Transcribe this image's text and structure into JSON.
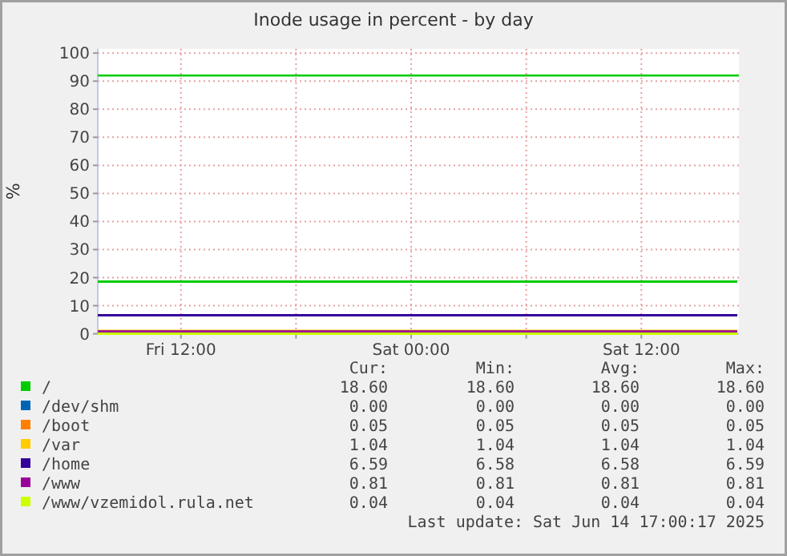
{
  "chart_data": {
    "type": "line",
    "title": "Inode usage in percent - by day",
    "ylabel": "%",
    "xlim": [
      "2025-06-13T07:40",
      "2025-06-14T17:05"
    ],
    "xticks": [
      {
        "value": "2025-06-13T12:00",
        "label": "Fri 12:00"
      },
      {
        "value": "2025-06-13T18:00",
        "label": null
      },
      {
        "value": "2025-06-14T00:00",
        "label": "Sat 00:00"
      },
      {
        "value": "2025-06-14T06:00",
        "label": null
      },
      {
        "value": "2025-06-14T12:00",
        "label": "Sat 12:00"
      }
    ],
    "ylim": [
      0,
      101.5
    ],
    "yticks": [
      0,
      10,
      20,
      30,
      40,
      50,
      60,
      70,
      80,
      90,
      100
    ],
    "grid": true,
    "legend": "bottom",
    "x": [
      "2025-06-13T07:40",
      "2025-06-14T17:00"
    ],
    "series": [
      {
        "name": "/",
        "color": "#00cc00",
        "values": [
          18.6,
          18.6
        ]
      },
      {
        "name": "/dev/shm",
        "color": "#0066b3",
        "values": [
          null,
          null
        ]
      },
      {
        "name": "/boot",
        "color": "#ff8000",
        "values": [
          null,
          null
        ]
      },
      {
        "name": "/var",
        "color": "#ffcc00",
        "values": [
          1.04,
          1.04
        ]
      },
      {
        "name": "/home",
        "color": "#330099",
        "values": [
          6.59,
          6.59
        ]
      },
      {
        "name": "/www",
        "color": "#990099",
        "values": [
          0.81,
          0.81
        ]
      },
      {
        "name": "/www/vzemidol.rula.net",
        "color": "#ccff00",
        "values": [
          0.04,
          0.04
        ]
      }
    ],
    "ref_lines": [
      {
        "axis": "y",
        "value": 92,
        "color": "#00cc00"
      }
    ],
    "annotations": [
      "Cur:",
      "Min:",
      "Avg:",
      "Max:",
      "18.60",
      "18.60",
      "18.60",
      "18.60",
      "0.00",
      "0.00",
      "0.00",
      "0.00",
      "0.05",
      "0.05",
      "0.05",
      "0.05",
      "1.04",
      "1.04",
      "1.04",
      "1.04",
      "6.59",
      "6.58",
      "6.58",
      "6.59",
      "0.81",
      "0.81",
      "0.81",
      "0.81",
      "0.04",
      "0.04",
      "0.04",
      "0.04",
      "Last update: Sat Jun 14 17:00:17 2025"
    ]
  }
}
